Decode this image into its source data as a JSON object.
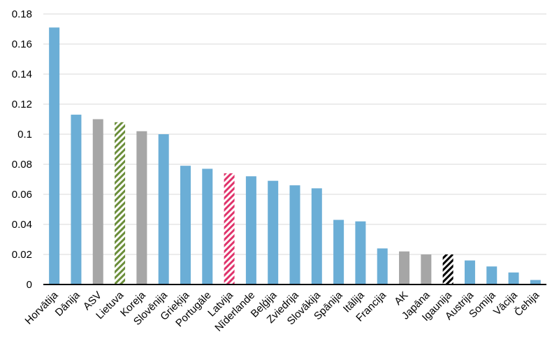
{
  "chart_data": {
    "type": "bar",
    "title": "",
    "xlabel": "",
    "ylabel": "",
    "ylim": [
      0,
      0.18
    ],
    "yticks": [
      "0",
      "0.02",
      "0.04",
      "0.06",
      "0.08",
      "0.1",
      "0.12",
      "0.14",
      "0.16",
      "0.18"
    ],
    "grid": true,
    "legend": "none",
    "categories": [
      "Horvātija",
      "Dānija",
      "ASV",
      "Lietuva",
      "Koreja",
      "Slovēnija",
      "Grieķija",
      "Portugāle",
      "Latvija",
      "Nīderlande",
      "Beļģija",
      "Zviedrija",
      "Slovākija",
      "Spānija",
      "Itālija",
      "Francija",
      "AK",
      "Japāna",
      "Igaunija",
      "Austrija",
      "Somija",
      "Vācija",
      "Čehija"
    ],
    "values": [
      0.171,
      0.113,
      0.11,
      0.108,
      0.102,
      0.1,
      0.079,
      0.077,
      0.074,
      0.072,
      0.069,
      0.066,
      0.064,
      0.043,
      0.042,
      0.024,
      0.022,
      0.02,
      0.02,
      0.016,
      0.012,
      0.008,
      0.003
    ],
    "styles": [
      "blue",
      "blue",
      "gray",
      "green-hatch",
      "gray",
      "blue",
      "blue",
      "blue",
      "pink-hatch",
      "blue",
      "blue",
      "blue",
      "blue",
      "blue",
      "blue",
      "blue",
      "gray",
      "gray",
      "black-hatch",
      "blue",
      "blue",
      "blue",
      "blue"
    ],
    "colors": {
      "blue": "#6baed6",
      "gray": "#a6a6a6",
      "green": "#6b8e3a",
      "pink": "#e0336b",
      "black": "#000000",
      "grid": "#d9d9d9"
    }
  }
}
